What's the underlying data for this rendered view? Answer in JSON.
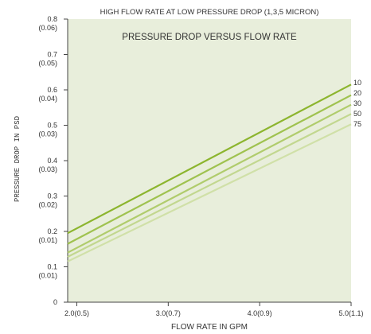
{
  "chart_data": {
    "type": "line",
    "title": "HIGH FLOW RATE AT LOW PRESSURE DROP (1,3,5 MICRON)",
    "subtitle": "PRESSURE DROP VERSUS FLOW RATE",
    "xlabel": "FLOW RATE IN GPM",
    "ylabel": "PRESSURE DROP IN PSD",
    "xlim": [
      1.9,
      5.0
    ],
    "ylim": [
      0,
      0.8
    ],
    "x_ticks": [
      {
        "value": 2.0,
        "label": "2.0(0.5)"
      },
      {
        "value": 3.0,
        "label": "3.0(0.7)"
      },
      {
        "value": 4.0,
        "label": "4.0(0.9)"
      },
      {
        "value": 5.0,
        "label": "5.0(1.1)"
      }
    ],
    "y_ticks": [
      {
        "value": 0,
        "label": "0",
        "sub": ""
      },
      {
        "value": 0.1,
        "label": "0.1",
        "sub": "(0.01)"
      },
      {
        "value": 0.2,
        "label": "0.2",
        "sub": "(0.01)"
      },
      {
        "value": 0.3,
        "label": "0.3",
        "sub": "(0.02)"
      },
      {
        "value": 0.4,
        "label": "0.4",
        "sub": "(0.03)"
      },
      {
        "value": 0.5,
        "label": "0.5",
        "sub": "(0.03)"
      },
      {
        "value": 0.6,
        "label": "0.6",
        "sub": "(0.04)"
      },
      {
        "value": 0.7,
        "label": "0.7",
        "sub": "(0.05)"
      },
      {
        "value": 0.8,
        "label": "0.8",
        "sub": "(0.06)"
      }
    ],
    "grid": false,
    "legend_position": "right",
    "background_color": "#e8eedb",
    "series": [
      {
        "name": "10",
        "color": "#8cb52e",
        "x": [
          1.9,
          5.0
        ],
        "y": [
          0.195,
          0.615
        ]
      },
      {
        "name": "20",
        "color": "#9fc24f",
        "x": [
          1.9,
          5.0
        ],
        "y": [
          0.165,
          0.585
        ]
      },
      {
        "name": "30",
        "color": "#b0cc6c",
        "x": [
          1.9,
          5.0
        ],
        "y": [
          0.14,
          0.558
        ]
      },
      {
        "name": "50",
        "color": "#c2d78f",
        "x": [
          1.9,
          5.0
        ],
        "y": [
          0.128,
          0.532
        ]
      },
      {
        "name": "75",
        "color": "#d0e0a8",
        "x": [
          1.9,
          5.0
        ],
        "y": [
          0.115,
          0.503
        ]
      }
    ]
  }
}
